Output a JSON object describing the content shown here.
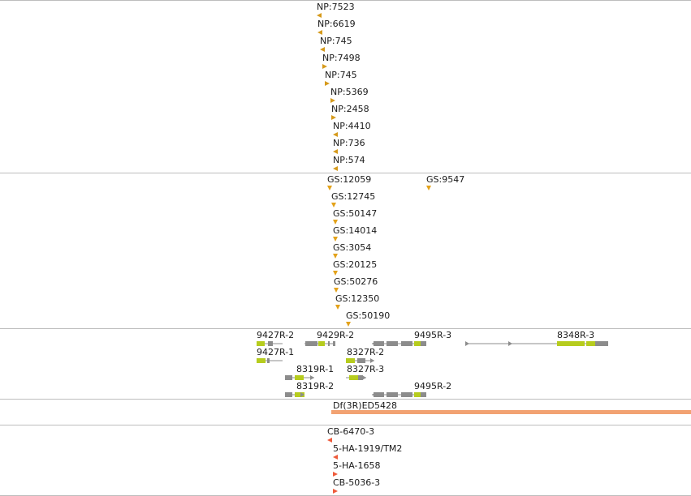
{
  "colors": {
    "np_marker": "#d69a1c",
    "gs_marker": "#e3a21a",
    "cb_marker": "#ee5a3a",
    "gene_body": "#8c8c8c",
    "gene_cds": "#b6cc1e",
    "deficiency": "#f2a272",
    "separator": "#bdbdbd"
  },
  "np_track": {
    "features": [
      {
        "label": "NP:7523",
        "marker": "left"
      },
      {
        "label": "NP:6619",
        "marker": "left"
      },
      {
        "label": "NP:745",
        "marker": "left"
      },
      {
        "label": "NP:7498",
        "marker": "right"
      },
      {
        "label": "NP:745",
        "marker": "right"
      },
      {
        "label": "NP:5369",
        "marker": "right"
      },
      {
        "label": "NP:2458",
        "marker": "right"
      },
      {
        "label": "NP:4410",
        "marker": "left"
      },
      {
        "label": "NP:736",
        "marker": "left"
      },
      {
        "label": "NP:574",
        "marker": "left"
      }
    ]
  },
  "gs_track": {
    "features": [
      {
        "label": "GS:12059",
        "marker": "down"
      },
      {
        "label": "GS:9547",
        "marker": "down"
      },
      {
        "label": "GS:12745",
        "marker": "down"
      },
      {
        "label": "GS:50147",
        "marker": "down"
      },
      {
        "label": "GS:14014",
        "marker": "down"
      },
      {
        "label": "GS:3054",
        "marker": "down"
      },
      {
        "label": "GS:20125",
        "marker": "down"
      },
      {
        "label": "GS:50276",
        "marker": "down"
      },
      {
        "label": "GS:12350",
        "marker": "down"
      },
      {
        "label": "GS:50190",
        "marker": "down"
      }
    ]
  },
  "gene_track": {
    "features": [
      {
        "label": "9427R-2"
      },
      {
        "label": "9429R-2"
      },
      {
        "label": "9495R-3"
      },
      {
        "label": "8348R-3"
      },
      {
        "label": "9427R-1"
      },
      {
        "label": "8327R-2"
      },
      {
        "label": "8319R-1"
      },
      {
        "label": "8327R-3"
      },
      {
        "label": "8319R-2"
      },
      {
        "label": "9495R-2"
      }
    ]
  },
  "deficiency_track": {
    "feature": {
      "label": "Df(3R)ED5428"
    }
  },
  "cb_track": {
    "features": [
      {
        "label": "CB-6470-3",
        "marker": "left"
      },
      {
        "label": "5-HA-1919/TM2",
        "marker": "left"
      },
      {
        "label": "5-HA-1658",
        "marker": "right"
      },
      {
        "label": "CB-5036-3",
        "marker": "right"
      }
    ]
  }
}
